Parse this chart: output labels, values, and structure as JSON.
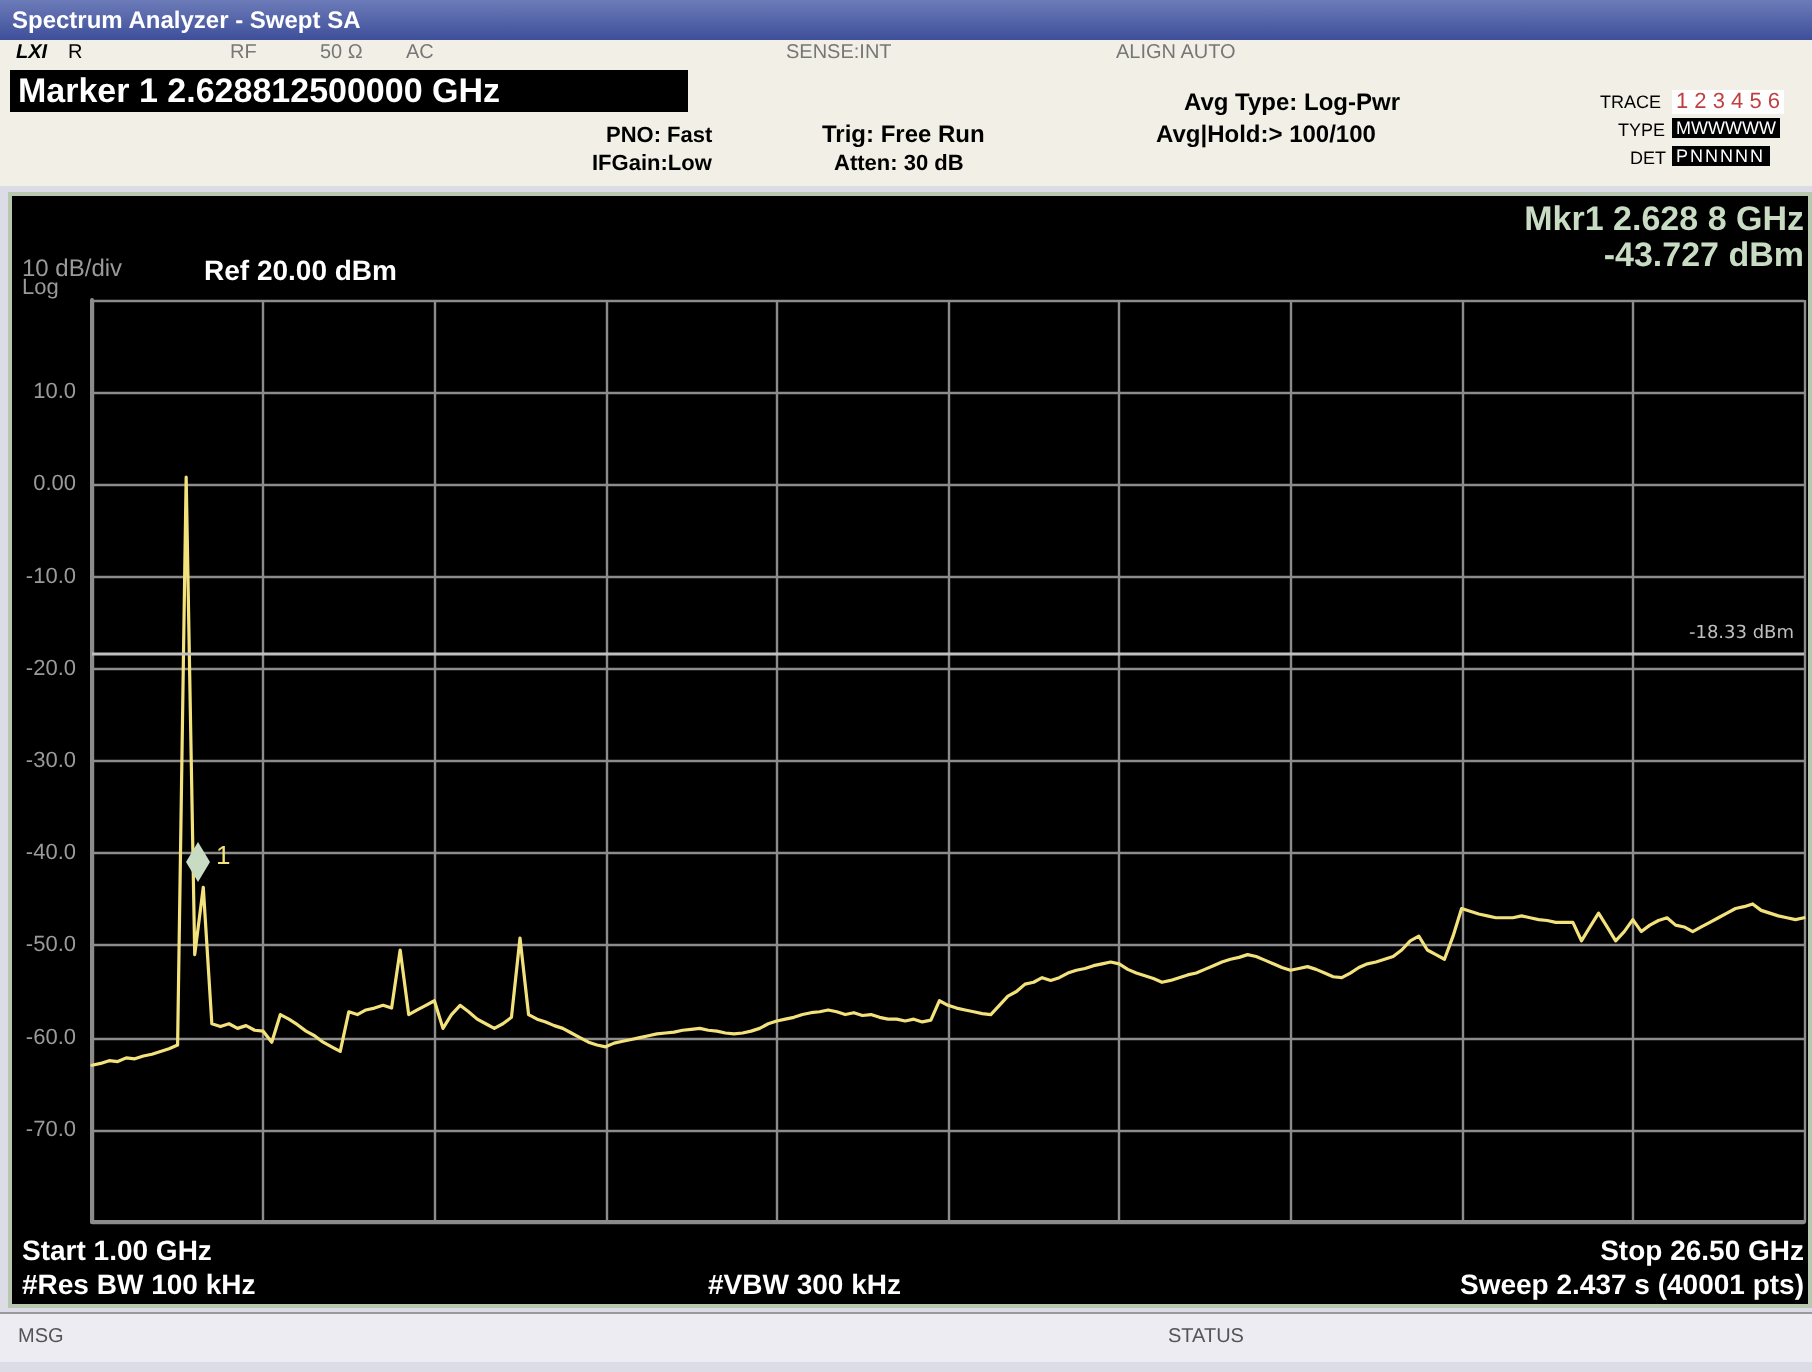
{
  "chart_data": {
    "type": "line",
    "title": "Spectrum Analyzer - Swept SA",
    "categories": [
      null,
      null,
      null,
      null,
      null,
      null,
      null,
      null,
      null,
      null,
      null,
      null,
      null,
      null,
      null,
      null,
      null,
      null,
      null,
      null,
      null,
      null,
      null,
      null,
      null,
      null,
      null,
      null,
      null,
      null,
      null,
      null,
      null,
      null,
      null,
      null,
      null,
      null,
      null,
      null,
      null,
      null,
      null,
      null,
      null,
      null,
      null,
      null,
      null,
      null,
      null,
      null,
      null,
      null,
      null,
      null,
      null,
      null,
      null,
      null,
      null,
      null,
      null,
      null,
      null,
      null,
      null,
      null,
      null,
      null,
      null,
      null,
      null,
      null,
      null,
      null,
      null,
      null,
      null,
      null,
      null,
      null,
      null,
      null,
      null,
      null,
      null,
      null,
      null,
      null,
      null,
      null,
      null,
      null,
      null,
      null,
      null,
      null,
      null,
      null,
      null,
      null,
      null,
      null,
      null,
      null,
      null,
      null,
      null,
      null,
      null,
      null,
      null,
      null,
      null,
      null,
      null,
      null,
      null,
      null,
      null,
      null,
      null,
      null,
      null,
      null,
      null,
      null,
      null,
      null,
      null,
      null,
      null,
      null,
      null,
      null,
      null,
      null,
      null,
      null,
      null,
      null,
      null,
      null,
      null,
      null,
      null,
      null,
      null,
      null,
      null,
      null,
      null,
      null,
      null,
      null,
      null,
      null,
      null,
      null,
      null,
      null,
      null,
      null,
      null,
      null,
      null,
      null,
      null,
      null,
      null,
      null,
      null,
      null,
      null,
      null,
      null,
      null,
      null,
      null,
      null,
      null,
      null,
      null,
      null,
      null,
      null,
      null,
      null,
      null,
      null,
      null,
      null,
      null,
      null,
      null,
      null,
      null,
      null,
      null,
      null
    ],
    "ylim": [
      -80,
      20
    ],
    "yticks": [
      {
        "value": 20,
        "label": null
      },
      {
        "value": 10,
        "label": "10.0"
      },
      {
        "value": 0,
        "label": "0.00"
      },
      {
        "value": -10,
        "label": "-10.0"
      },
      {
        "value": -20,
        "label": "-20.0"
      },
      {
        "value": -30,
        "label": "-30.0"
      },
      {
        "value": -40,
        "label": "-40.0"
      },
      {
        "value": -50,
        "label": "-50.0"
      },
      {
        "value": -60,
        "label": "-60.0"
      },
      {
        "value": -70,
        "label": "-70.0"
      },
      {
        "value": -80,
        "label": null
      }
    ],
    "tick_labels": "y",
    "grid": true,
    "line_style": "solid",
    "series": [
      {
        "color": "#f3e27c",
        "values": [
          -63,
          -62.8,
          -62.5,
          -62.6,
          -62.2,
          -62.3,
          -62,
          -61.8,
          -61.5,
          -61.2,
          -60.8,
          0.8,
          -51,
          -43.7,
          -58.5,
          -58.8,
          -58.5,
          -59,
          -58.7,
          -59.2,
          -59.3,
          -60.5,
          -57.5,
          -58,
          -58.6,
          -59.3,
          -59.8,
          -60.5,
          -61,
          -61.5,
          -57.2,
          -57.5,
          -57,
          -56.8,
          -56.5,
          -56.8,
          -50.5,
          -57.5,
          -57,
          -56.5,
          -56,
          -59,
          -57.5,
          -56.5,
          -57.2,
          -58,
          -58.5,
          -59,
          -58.5,
          -57.8,
          -49.2,
          -57.5,
          -58,
          -58.3,
          -58.7,
          -59,
          -59.5,
          -60,
          -60.5,
          -60.8,
          -61,
          -60.6,
          -60.4,
          -60.2,
          -60,
          -59.8,
          -59.6,
          -59.5,
          -59.4,
          -59.2,
          -59.1,
          -59,
          -59.2,
          -59.3,
          -59.5,
          -59.6,
          -59.5,
          -59.3,
          -59,
          -58.5,
          -58.2,
          -58,
          -57.8,
          -57.5,
          -57.3,
          -57.2,
          -57,
          -57.2,
          -57.5,
          -57.3,
          -57.6,
          -57.5,
          -57.8,
          -58,
          -58,
          -58.2,
          -58,
          -58.3,
          -58.1,
          -56,
          -56.5,
          -56.8,
          -57,
          -57.2,
          -57.4,
          -57.5,
          -56.5,
          -55.5,
          -55,
          -54.2,
          -54,
          -53.5,
          -53.8,
          -53.5,
          -53,
          -52.7,
          -52.5,
          -52.2,
          -52,
          -51.8,
          -52,
          -52.6,
          -53,
          -53.3,
          -53.6,
          -54,
          -53.8,
          -53.5,
          -53.2,
          -53,
          -52.6,
          -52.2,
          -51.8,
          -51.5,
          -51.3,
          -51,
          -51.2,
          -51.6,
          -52,
          -52.4,
          -52.7,
          -52.5,
          -52.3,
          -52.6,
          -53,
          -53.4,
          -53.5,
          -53,
          -52.4,
          -52,
          -51.8,
          -51.5,
          -51.2,
          -50.5,
          -49.5,
          -49,
          -50.5,
          -51,
          -51.5,
          -49,
          -46,
          -46.3,
          -46.6,
          -46.8,
          -47,
          -47,
          -47,
          -46.8,
          -47,
          -47.2,
          -47.3,
          -47.5,
          -47.5,
          -47.5,
          -49.5,
          -48,
          -46.5,
          -48,
          -49.5,
          -48.5,
          -47.2,
          -48.5,
          -47.8,
          -47.3,
          -47,
          -47.8,
          -48,
          -48.5,
          -48,
          -47.5,
          -47,
          -46.5,
          -46,
          -45.8,
          -45.5,
          -46.2,
          -46.5,
          -46.8,
          -47,
          -47.2,
          -47
        ]
      }
    ],
    "ref_lines": [
      {
        "axis": "y",
        "value": -18.33,
        "label": "-18.33 dBm",
        "color": "#bfbfbf"
      }
    ],
    "annotations": [
      "LXI",
      "R",
      "RF",
      "50 Ω",
      "AC",
      "SENSE:INT",
      "ALIGN AUTO",
      "Marker 1 2.628812500000 GHz",
      "PNO: Fast",
      "IFGain:Low",
      "Trig: Free Run",
      "Atten: 30 dB",
      "Avg Type: Log-Pwr",
      "Avg|Hold:> 100/100",
      "TRACE",
      "1 2 3 4 5 6",
      "TYPE",
      "MWWWWW",
      "DET",
      "PNNNNN",
      "Mkr1 2.628 8 GHz",
      "-43.727 dBm",
      "10 dB/div",
      "Ref 20.00 dBm",
      "Log",
      "Start 1.00 GHz",
      "#Res BW 100 kHz",
      "#VBW 300 kHz",
      "Stop 26.50 GHz",
      "Sweep  2.437 s (40001 pts)",
      "MSG",
      "STATUS",
      "1"
    ]
  }
}
